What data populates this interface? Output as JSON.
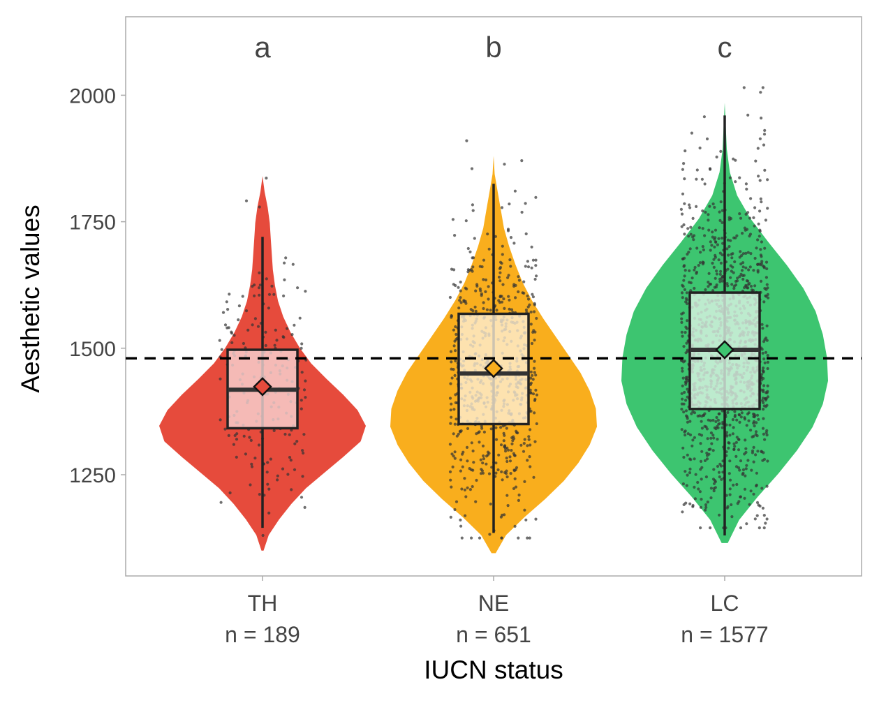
{
  "chart_data": {
    "type": "violin",
    "xlabel": "IUCN status",
    "ylabel": "Aesthetic values",
    "ylim": [
      1050,
      2155
    ],
    "yticks": [
      1250,
      1500,
      1750,
      2000
    ],
    "grid": false,
    "legend": "none",
    "reference_line": {
      "value": 1480,
      "style": "dashed",
      "color": "#000000"
    },
    "categories": [
      {
        "name": "TH",
        "n_label": "n = 189",
        "n": 189,
        "letter": "a",
        "color": "#E64B3C",
        "box_fill": "#F9DAD8",
        "whisker_low": 1145,
        "q1": 1342,
        "median": 1418,
        "q3": 1497,
        "whisker_high": 1720,
        "mean": 1424,
        "violin_min": 1100,
        "violin_max": 1840,
        "violin_mode": 1420,
        "violin_widths": [
          0.01,
          0.06,
          0.16,
          0.28,
          0.42,
          0.6,
          0.78,
          0.95,
          1.0,
          0.92,
          0.78,
          0.62,
          0.47,
          0.36,
          0.27,
          0.2,
          0.15,
          0.12,
          0.1,
          0.09,
          0.08,
          0.07,
          0.05,
          0.02,
          0.0
        ]
      },
      {
        "name": "NE",
        "n_label": "n = 651",
        "n": 651,
        "letter": "b",
        "color": "#F9AE1D",
        "box_fill": "#FEF1D9",
        "whisker_low": 1135,
        "q1": 1350,
        "median": 1450,
        "q3": 1568,
        "whisker_high": 1825,
        "mean": 1460,
        "violin_min": 1095,
        "violin_max": 1880,
        "violin_mode": 1440,
        "violin_widths": [
          0.02,
          0.12,
          0.3,
          0.5,
          0.68,
          0.82,
          0.93,
          1.0,
          0.99,
          0.93,
          0.84,
          0.72,
          0.6,
          0.48,
          0.37,
          0.28,
          0.21,
          0.15,
          0.1,
          0.07,
          0.04,
          0.01,
          0.0
        ]
      },
      {
        "name": "LC",
        "n_label": "n = 1577",
        "n": 1577,
        "letter": "c",
        "color": "#3DC570",
        "box_fill": "#E1F6E9",
        "whisker_low": 1130,
        "q1": 1380,
        "median": 1497,
        "q3": 1610,
        "whisker_high": 1960,
        "mean": 1497,
        "violin_min": 1115,
        "violin_max": 1985,
        "violin_mode": 1480,
        "violin_widths": [
          0.03,
          0.14,
          0.32,
          0.52,
          0.7,
          0.85,
          0.95,
          1.0,
          0.99,
          0.95,
          0.88,
          0.76,
          0.6,
          0.42,
          0.25,
          0.12,
          0.05,
          0.02,
          0.01,
          0.0
        ]
      }
    ]
  }
}
